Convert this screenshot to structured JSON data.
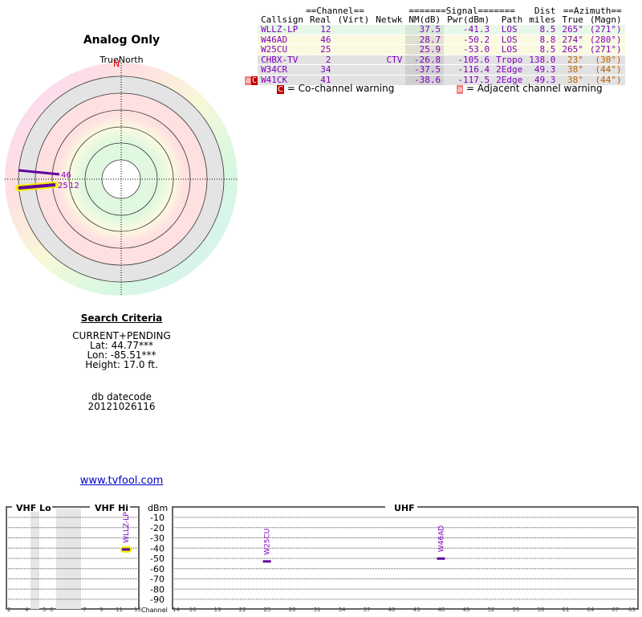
{
  "plot": {
    "title": "Analog Only",
    "north_label": "TrueNorth",
    "n_marker": "N"
  },
  "criteria": {
    "heading": "Search Criteria",
    "mode": "CURRENT+PENDING",
    "lat": "Lat: 44.77***",
    "lon": "Lon: -85.51***",
    "height": "Height: 17.0 ft.",
    "db_label": "db datecode",
    "db_code": "20121026116"
  },
  "link": "www.tvfool.com",
  "table": {
    "group_headers": {
      "channel": "==Channel==",
      "signal": "=======Signal=======",
      "dist": "Dist",
      "azimuth": "==Azimuth=="
    },
    "headers": [
      "Callsign",
      "Real",
      "(Virt)",
      "Netwk",
      "NM(dB)",
      "Pwr(dBm)",
      "Path",
      "miles",
      "True",
      "(Magn)"
    ],
    "rows": [
      {
        "flag": "",
        "callsign": "WLLZ-LP",
        "real": "12",
        "virt": "",
        "netwk": "",
        "nm": "37.5",
        "pwr": "-41.3",
        "path": "LOS",
        "dist": "8.5",
        "true": "265°",
        "magn": "(271°)",
        "band": "g"
      },
      {
        "flag": "",
        "callsign": "W46AD",
        "real": "46",
        "virt": "",
        "netwk": "",
        "nm": "28.7",
        "pwr": "-50.2",
        "path": "LOS",
        "dist": "8.8",
        "true": "274°",
        "magn": "(280°)",
        "band": "y"
      },
      {
        "flag": "",
        "callsign": "W25CU",
        "real": "25",
        "virt": "",
        "netwk": "",
        "nm": "25.9",
        "pwr": "-53.0",
        "path": "LOS",
        "dist": "8.5",
        "true": "265°",
        "magn": "(271°)",
        "band": "y"
      },
      {
        "flag": "",
        "callsign": "CHBX-TV",
        "real": "2",
        "virt": "",
        "netwk": "CTV",
        "nm": "-26.8",
        "pwr": "-105.6",
        "path": "Tropo",
        "dist": "138.0",
        "true": "23°",
        "magn": "(30°)",
        "band": "x"
      },
      {
        "flag": "",
        "callsign": "W34CR",
        "real": "34",
        "virt": "",
        "netwk": "",
        "nm": "-37.5",
        "pwr": "-116.4",
        "path": "2Edge",
        "dist": "49.3",
        "true": "38°",
        "magn": "(44°)",
        "band": "x"
      },
      {
        "flag": "aC",
        "callsign": "W41CK",
        "real": "41",
        "virt": "",
        "netwk": "",
        "nm": "-38.6",
        "pwr": "-117.5",
        "path": "2Edge",
        "dist": "49.3",
        "true": "38°",
        "magn": "(44°)",
        "band": "x"
      }
    ]
  },
  "legend": {
    "co_icon": "C",
    "co_text": "= Co-channel warning",
    "adj_icon": "a",
    "adj_text": "= Adjacent channel warning"
  },
  "spectrum": {
    "vhf_lo": "VHF Lo",
    "vhf_hi": "VHF Hi",
    "uhf": "UHF",
    "dbm": "dBm",
    "channel": "Channel",
    "db_ticks": [
      "-10",
      "-20",
      "-30",
      "-40",
      "-50",
      "-60",
      "-70",
      "-80",
      "-90"
    ],
    "vhf_channels": [
      "2",
      "4",
      "5",
      "6",
      "7",
      "9",
      "11",
      "13"
    ],
    "uhf_channels": [
      "14",
      "16",
      "19",
      "22",
      "25",
      "28",
      "31",
      "34",
      "37",
      "40",
      "43",
      "46",
      "49",
      "52",
      "55",
      "58",
      "61",
      "64",
      "67",
      "69"
    ],
    "markers": [
      {
        "callsign": "WLLZ-LP",
        "channel": 12,
        "dbm": -41.3,
        "highlight": true
      },
      {
        "callsign": "W25CU",
        "channel": 25,
        "dbm": -53.0
      },
      {
        "callsign": "W46AD",
        "channel": 46,
        "dbm": -50.2
      }
    ]
  },
  "polar": {
    "stations": [
      {
        "label": "46",
        "azimuth": 274,
        "nm": 28.7
      },
      {
        "label": "25",
        "azimuth": 265,
        "nm": 25.9
      },
      {
        "label": "12",
        "azimuth": 265,
        "nm": 37.5,
        "highlight": true
      }
    ]
  }
}
